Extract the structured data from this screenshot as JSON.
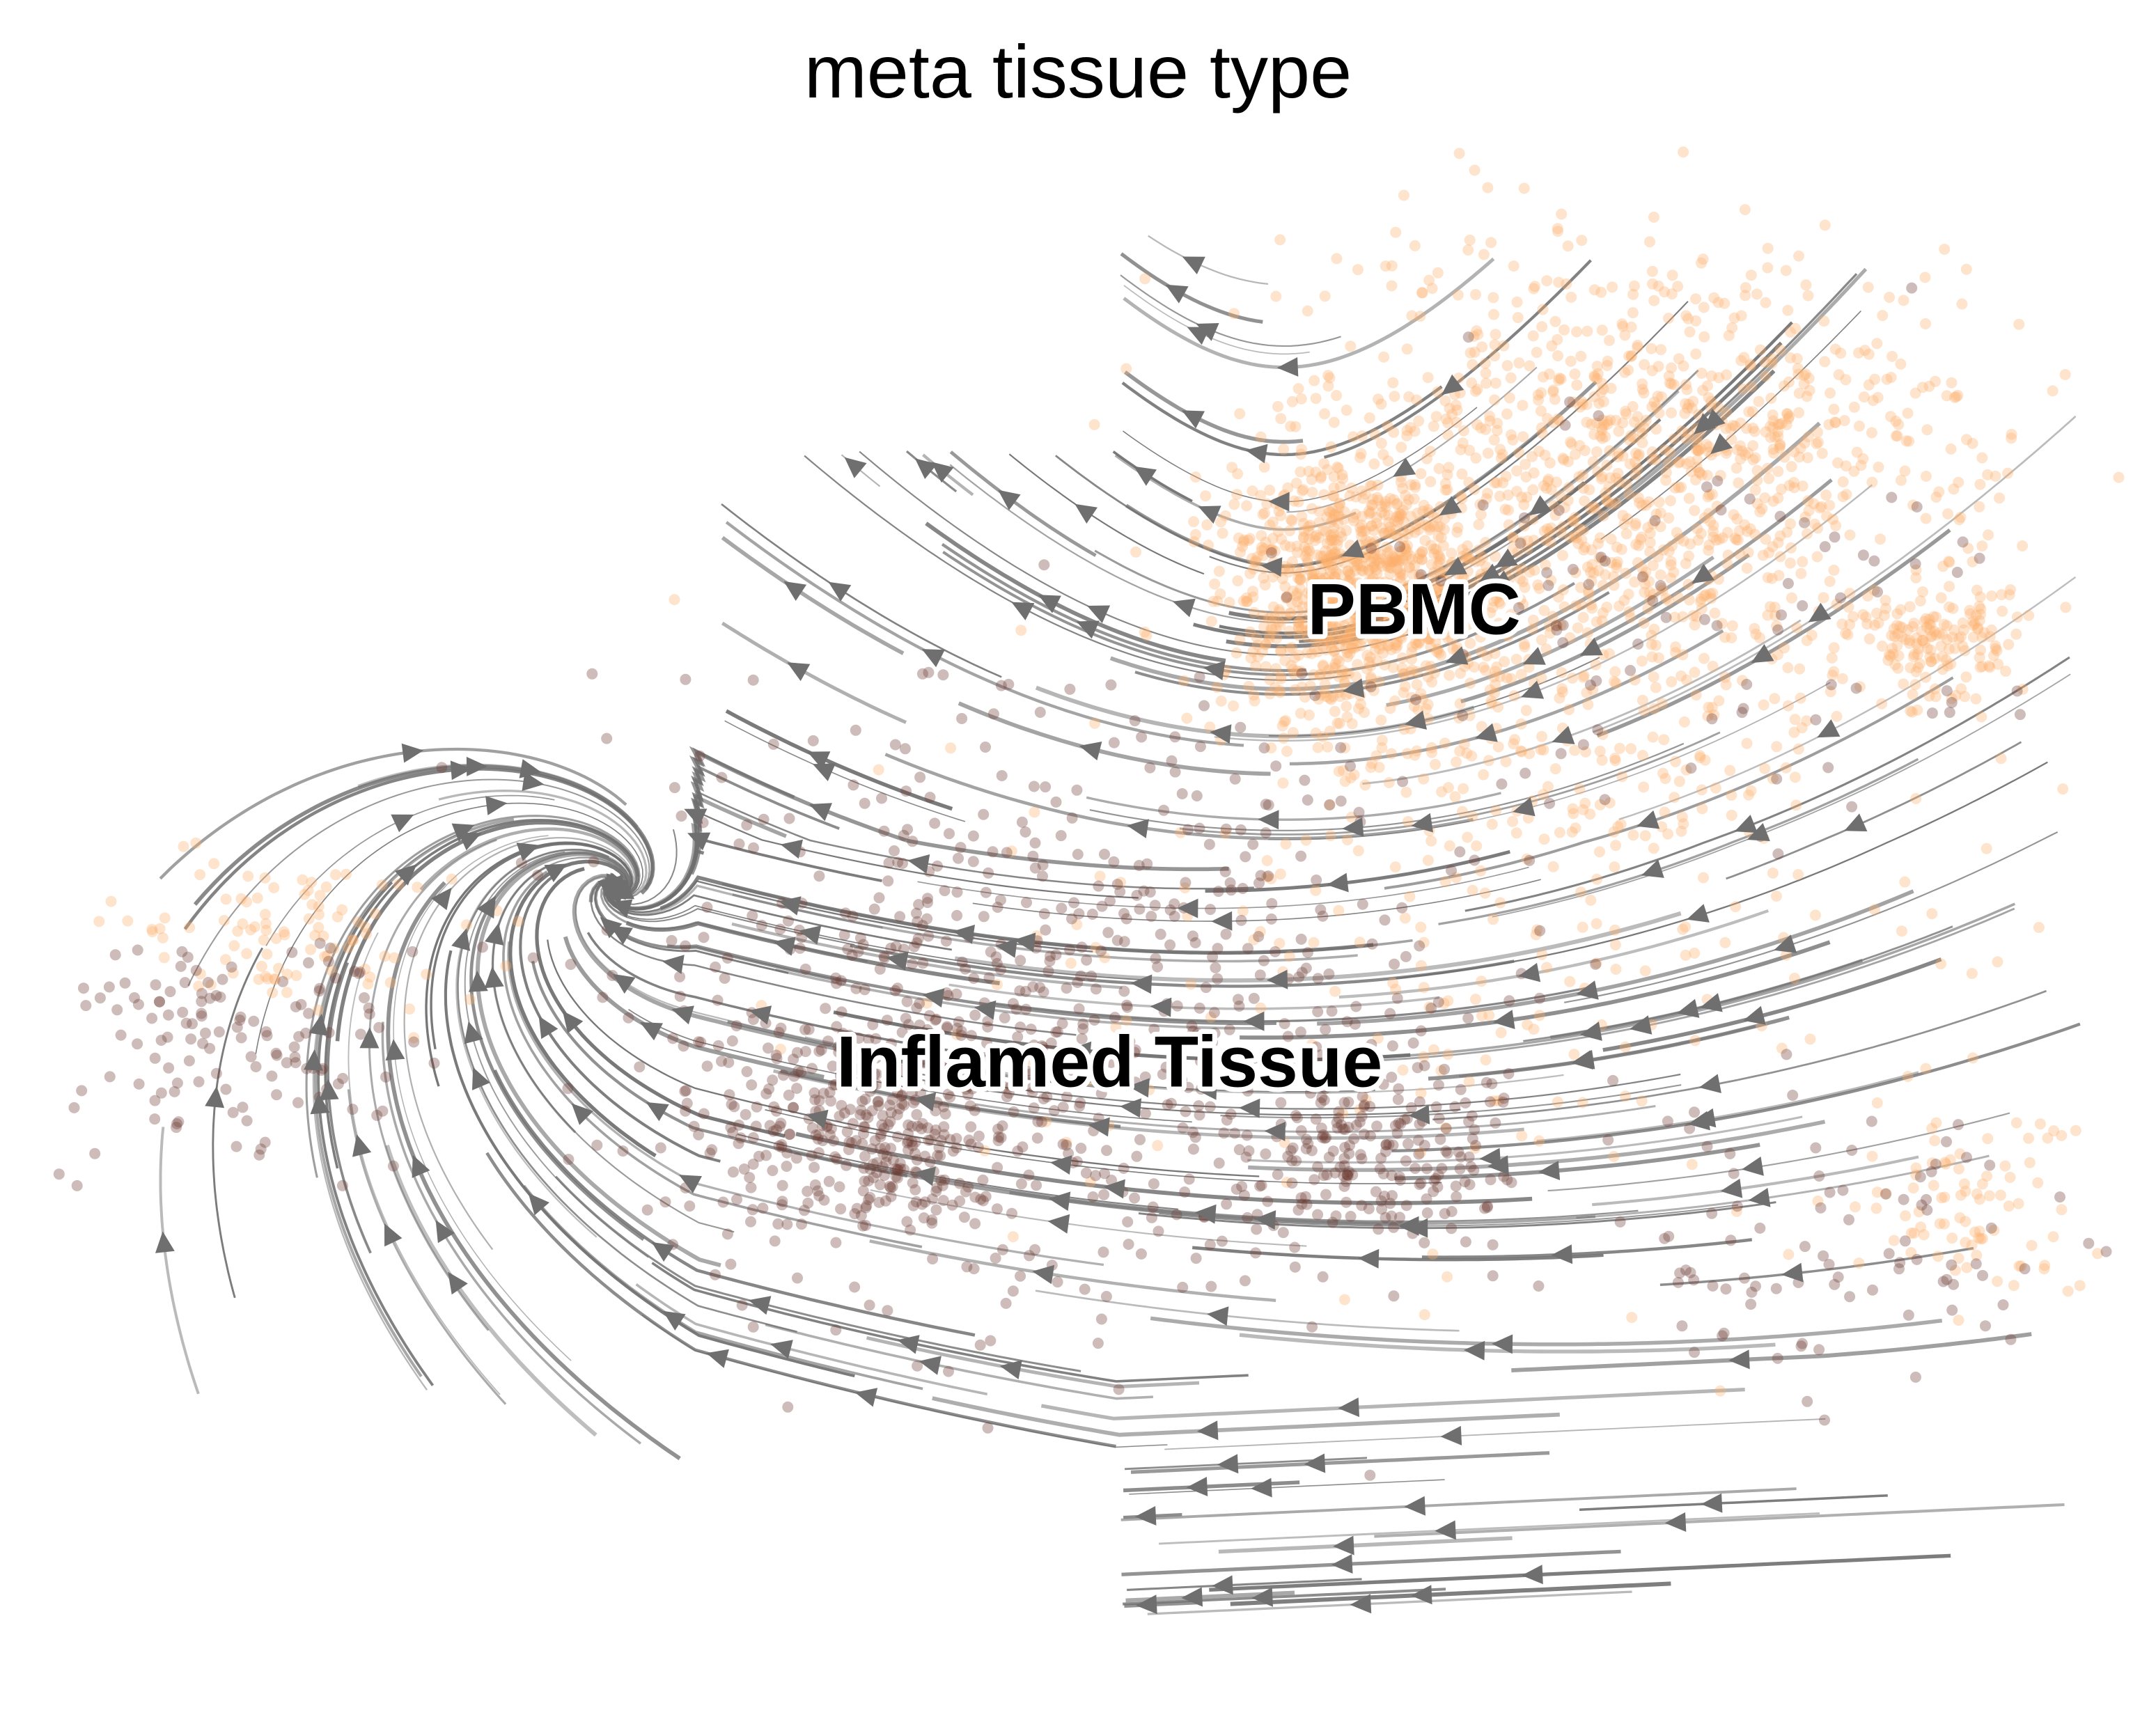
{
  "chart_data": {
    "type": "scatter",
    "title": "meta tissue type",
    "xlabel": "",
    "ylabel": "",
    "grid": false,
    "legend": "none",
    "cluster_labels": [
      {
        "text": "PBMC",
        "x": 0.66,
        "y": 0.305,
        "color": "#fdb16b"
      },
      {
        "text": "Inflamed Tissue",
        "x": 0.515,
        "y": 0.595,
        "color": "#6b3b32"
      }
    ],
    "groups": [
      {
        "name": "PBMC",
        "color": "#fdb16b",
        "centers": [
          {
            "x": 0.63,
            "y": 0.29,
            "n": 900,
            "sx": 0.028,
            "sy": 0.04
          },
          {
            "x": 0.73,
            "y": 0.27,
            "n": 900,
            "sx": 0.075,
            "sy": 0.09
          },
          {
            "x": 0.8,
            "y": 0.19,
            "n": 450,
            "sx": 0.07,
            "sy": 0.05
          },
          {
            "x": 0.91,
            "y": 0.32,
            "n": 160,
            "sx": 0.02,
            "sy": 0.02
          },
          {
            "x": 0.7,
            "y": 0.52,
            "n": 220,
            "sx": 0.14,
            "sy": 0.1
          },
          {
            "x": 0.13,
            "y": 0.51,
            "n": 100,
            "sx": 0.04,
            "sy": 0.025
          },
          {
            "x": 0.93,
            "y": 0.68,
            "n": 80,
            "sx": 0.03,
            "sy": 0.03
          }
        ]
      },
      {
        "name": "Inflamed Tissue",
        "color": "#6b3b32",
        "centers": [
          {
            "x": 0.4,
            "y": 0.635,
            "n": 320,
            "sx": 0.035,
            "sy": 0.035
          },
          {
            "x": 0.64,
            "y": 0.65,
            "n": 200,
            "sx": 0.035,
            "sy": 0.03
          },
          {
            "x": 0.48,
            "y": 0.55,
            "n": 620,
            "sx": 0.1,
            "sy": 0.1
          },
          {
            "x": 0.1,
            "y": 0.57,
            "n": 130,
            "sx": 0.045,
            "sy": 0.035
          },
          {
            "x": 0.77,
            "y": 0.3,
            "n": 90,
            "sx": 0.1,
            "sy": 0.08
          },
          {
            "x": 0.86,
            "y": 0.7,
            "n": 90,
            "sx": 0.06,
            "sy": 0.05
          }
        ]
      }
    ]
  }
}
